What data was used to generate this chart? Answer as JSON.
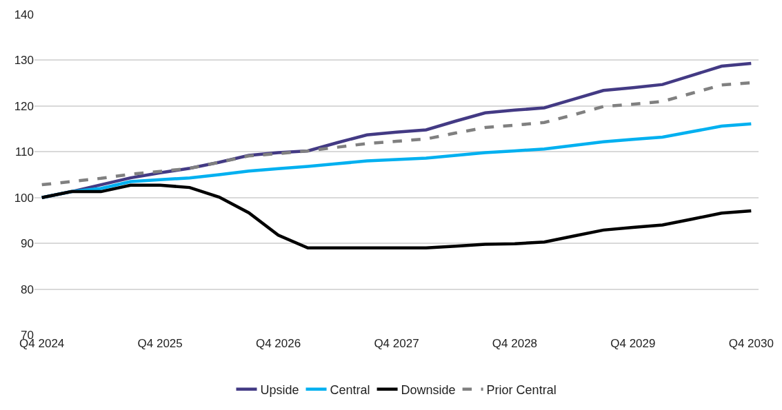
{
  "chart_data": {
    "type": "line",
    "categories": [
      "Q4 2024",
      null,
      null,
      null,
      "Q4 2025",
      null,
      null,
      null,
      "Q4 2026",
      null,
      null,
      null,
      "Q4 2027",
      null,
      null,
      null,
      "Q4 2028",
      null,
      null,
      null,
      "Q4 2029",
      null,
      null,
      null,
      "Q4 2030"
    ],
    "ylim": [
      70,
      140
    ],
    "yticks": [
      70,
      80,
      90,
      100,
      110,
      120,
      130,
      140
    ],
    "grid": "y",
    "legend": "bottom",
    "marker": "none",
    "series": [
      {
        "name": "Upside",
        "color": "#433a84",
        "values": [
          100,
          101.3,
          102.8,
          104.3,
          105.4,
          106.4,
          107.7,
          109.2,
          109.8,
          110.2,
          112,
          113.7,
          114.3,
          114.8,
          116.7,
          118.5,
          119.1,
          119.6,
          121.5,
          123.4,
          124,
          124.7,
          126.7,
          128.7,
          129.3
        ]
      },
      {
        "name": "Central",
        "color": "#00b0f0",
        "values": [
          100,
          101.3,
          102,
          103.5,
          103.9,
          104.3,
          105,
          105.8,
          106.3,
          106.8,
          107.4,
          108,
          108.3,
          108.6,
          109.2,
          109.8,
          110.2,
          110.6,
          111.4,
          112.2,
          112.7,
          113.2,
          114.4,
          115.6,
          116.1
        ]
      },
      {
        "name": "Downside",
        "color": "#000000",
        "values": [
          100,
          101.3,
          101.3,
          102.7,
          102.7,
          102.2,
          100.1,
          96.7,
          91.8,
          89,
          89,
          89,
          89,
          89,
          89.4,
          89.8,
          89.9,
          90.3,
          91.6,
          92.9,
          93.5,
          94,
          95.3,
          96.6,
          97.1
        ]
      },
      {
        "name": "Prior Central",
        "color": "#808080",
        "line_style": "dashed",
        "values": [
          102.8,
          103.5,
          104.2,
          105.1,
          105.7,
          106.4,
          107.7,
          109.1,
          109.6,
          110.2,
          111,
          111.8,
          112.3,
          112.8,
          114.1,
          115.3,
          115.8,
          116.4,
          118.1,
          119.9,
          120.4,
          121,
          122.8,
          124.6,
          125.1
        ]
      }
    ]
  }
}
